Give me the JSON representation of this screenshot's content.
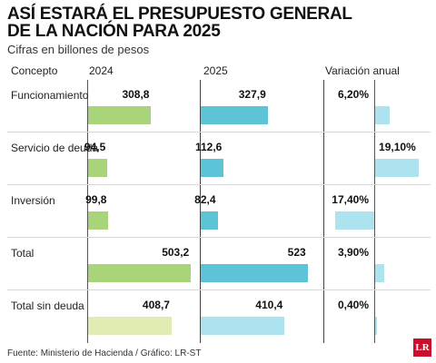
{
  "title_line1": "ASÍ ESTARÁ EL PRESUPUESTO GENERAL",
  "title_line2": "DE LA NACIÓN PARA 2025",
  "subtitle": "Cifras en billones de pesos",
  "headers": {
    "concept": "Concepto",
    "y2024": "2024",
    "y2025": "2025",
    "change": "Variación anual"
  },
  "source": "Fuente: Ministerio de Hacienda / Gráfico: LR-ST",
  "logo_text": "LR",
  "colors": {
    "green": "#a9d47a",
    "green_light": "#e1ecb2",
    "teal": "#5cc4d6",
    "teal_light": "#ade3ee",
    "change": "#ade3ee"
  },
  "chart_data": {
    "type": "bar",
    "title": "ASÍ ESTARÁ EL PRESUPUESTO GENERAL DE LA NACIÓN PARA 2025",
    "subtitle": "Cifras en billones de pesos",
    "categories": [
      "Funcionamiento",
      "Servicio de deuda",
      "Inversión",
      "Total",
      "Total sin deuda"
    ],
    "series": [
      {
        "name": "2024",
        "values": [
          308.8,
          94.5,
          99.8,
          503.2,
          408.7
        ],
        "labels": [
          "308,8",
          "94,5",
          "99,8",
          "503,2",
          "408,7"
        ]
      },
      {
        "name": "2025",
        "values": [
          327.9,
          112.6,
          82.4,
          523,
          410.4
        ],
        "labels": [
          "327,9",
          "112,6",
          "82,4",
          "523",
          "410,4"
        ]
      },
      {
        "name": "Variación anual",
        "values": [
          6.2,
          19.1,
          -17.4,
          3.9,
          0.4
        ],
        "labels": [
          "6,20%",
          "19,10%",
          "17,40%",
          "3,90%",
          "0,40%"
        ]
      }
    ]
  }
}
